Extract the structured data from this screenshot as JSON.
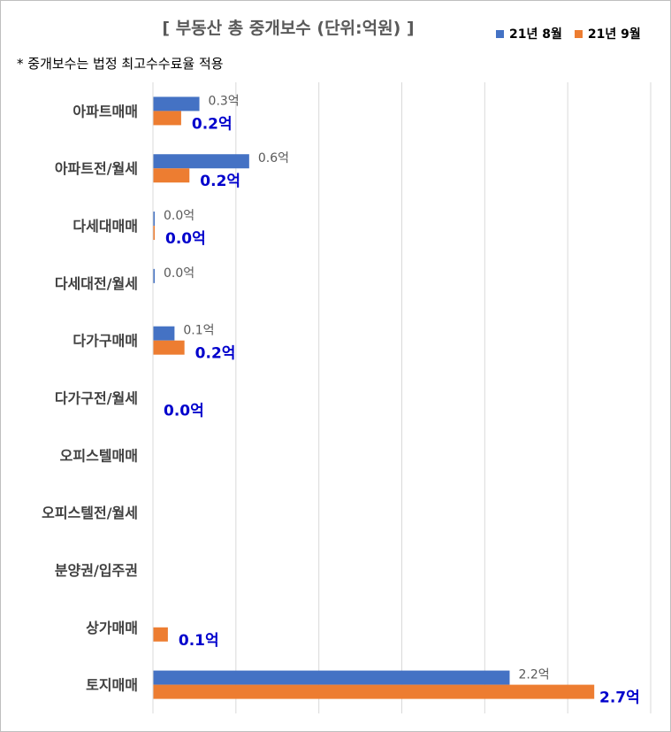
{
  "chart_data": {
    "type": "bar",
    "orientation": "horizontal",
    "title": "[ 부동산 총 중개보수 (단위:억원) ]",
    "note": "* 중개보수는 법정 최고수수료율 적용",
    "categories": [
      "아파트매매",
      "아파트전/월세",
      "다세대매매",
      "다세대전/월세",
      "다가구매매",
      "다가구전/월세",
      "오피스텔매매",
      "오피스텔전/월세",
      "분양권/입주권",
      "상가매매",
      "토지매매"
    ],
    "series": [
      {
        "name": "21년 8월",
        "color": "#4472c4",
        "values": [
          0.28,
          0.58,
          0.01,
          0.01,
          0.13,
          null,
          null,
          null,
          null,
          null,
          2.15
        ],
        "labels": [
          "0.3억",
          "0.6억",
          "0.0억",
          "0.0억",
          "0.1억",
          "",
          "",
          "",
          "",
          "",
          "2.2억"
        ]
      },
      {
        "name": "21년 9월",
        "color": "#ed7d31",
        "values": [
          0.17,
          0.22,
          0.01,
          null,
          0.19,
          0.0,
          null,
          null,
          null,
          0.09,
          2.66
        ],
        "labels": [
          "0.2억",
          "0.2억",
          "0.0억",
          "",
          "0.2억",
          "0.0억",
          "",
          "",
          "",
          "0.1억",
          "2.7억"
        ]
      }
    ],
    "xlim": [
      0,
      3.0
    ],
    "x_gridlines": [
      0,
      0.5,
      1.0,
      1.5,
      2.0,
      2.5,
      3.0
    ],
    "grid": true,
    "legend_position": "top-right",
    "label_color_sep": "#0000cc"
  }
}
